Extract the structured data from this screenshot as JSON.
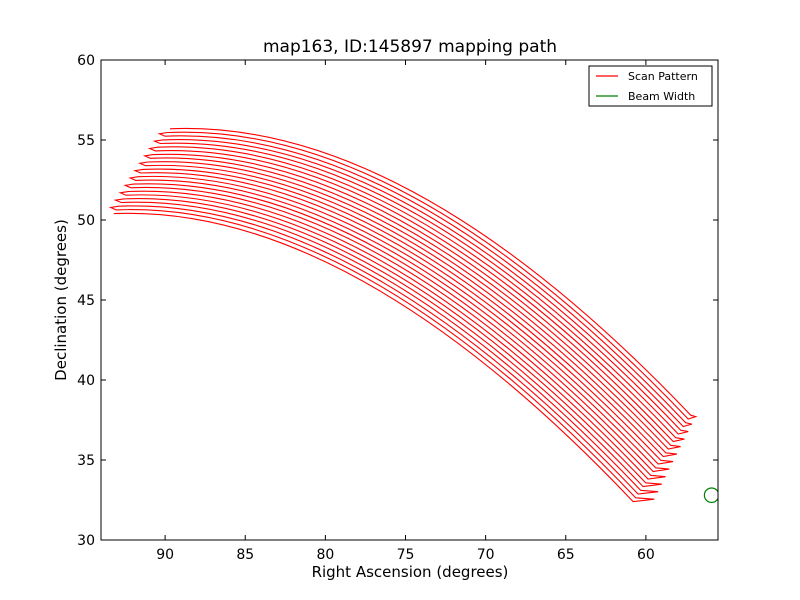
{
  "chart_data": {
    "type": "line",
    "title": "map163, ID:145897 mapping path",
    "xlabel": "Right Ascension (degrees)",
    "ylabel": "Declination (degrees)",
    "xlim": [
      94.0,
      55.5
    ],
    "ylim": [
      30,
      60
    ],
    "xticks": [
      90,
      85,
      80,
      75,
      70,
      65,
      60
    ],
    "yticks": [
      30,
      35,
      40,
      45,
      50,
      55,
      60
    ],
    "grid": false,
    "legend": {
      "position": "top-right",
      "entries": [
        {
          "label": "Scan Pattern",
          "color": "#ff0000"
        },
        {
          "label": "Beam Width",
          "color": "#008000"
        }
      ]
    },
    "scan_pattern": {
      "color": "#ff0000",
      "num_legs": 24,
      "left_end_start": [
        93.2,
        50.4
      ],
      "left_end_end": [
        89.7,
        55.7
      ],
      "right_end_start": [
        60.8,
        32.4
      ],
      "right_end_end": [
        57.2,
        37.8
      ],
      "left_end_outer_ra": 93.6,
      "right_end_outer_ra": 55.5,
      "curve_control_offset": [
        1.4,
        9.6
      ]
    },
    "beam_width": {
      "color": "#008000",
      "center": [
        55.9,
        32.8
      ],
      "radius_deg": 0.45
    }
  }
}
